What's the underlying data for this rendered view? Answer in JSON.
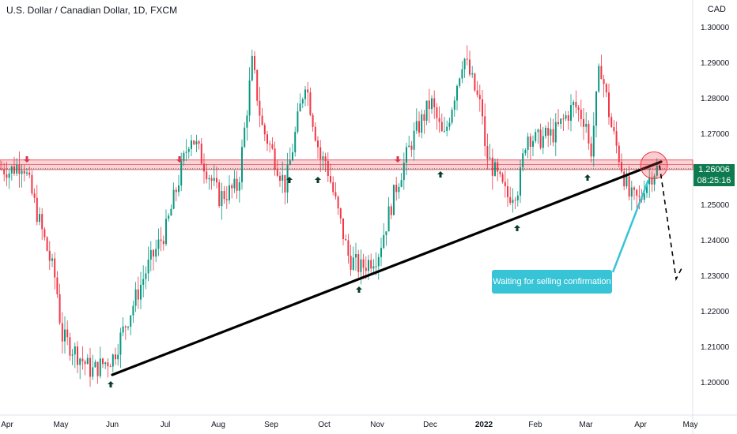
{
  "header": {
    "title": "U.S. Dollar / Canadian Dollar, 1D, FXCM",
    "currency": "CAD"
  },
  "price_tag": {
    "price": "1.26006",
    "countdown": "08:25:16"
  },
  "annotation": {
    "text": "Waiting for selling confirmation"
  },
  "colors": {
    "up": "#26a69a",
    "bull_candle": "#089981",
    "bear_candle": "#f23645",
    "trendline": "#000000",
    "zone_fill": "#f7c9cc",
    "zone_border": "#e0334a",
    "callout": "#37c4d6",
    "price_tag": "#0d7a4f"
  },
  "chart_data": {
    "type": "candlestick",
    "title": "U.S. Dollar / Canadian Dollar, 1D, FXCM",
    "y_unit": "CAD",
    "ylim": [
      1.195,
      1.302
    ],
    "y_ticks": [
      "1.30000",
      "1.29000",
      "1.28000",
      "1.27000",
      "1.26000",
      "1.25000",
      "1.24000",
      "1.23000",
      "1.22000",
      "1.21000",
      "1.20000"
    ],
    "x_ticks": [
      "Apr",
      "May",
      "Jun",
      "Jul",
      "Aug",
      "Sep",
      "Oct",
      "Nov",
      "Dec",
      "2022",
      "Feb",
      "Mar",
      "Apr",
      "May"
    ],
    "grid": false,
    "approx_close_path": [
      {
        "date": "Apr",
        "close": 1.259
      },
      {
        "date": "May",
        "close": 1.213
      },
      {
        "date": "Jun",
        "close": 1.207
      },
      {
        "date": "Jul",
        "close": 1.243
      },
      {
        "date": "Aug",
        "close": 1.252
      },
      {
        "date": "Sep",
        "close": 1.265
      },
      {
        "date": "Oct",
        "close": 1.263
      },
      {
        "date": "Nov",
        "close": 1.236
      },
      {
        "date": "Dec",
        "close": 1.279
      },
      {
        "date": "2022",
        "close": 1.265
      },
      {
        "date": "Feb",
        "close": 1.268
      },
      {
        "date": "Mar",
        "close": 1.273
      },
      {
        "date": "Apr",
        "close": 1.251
      },
      {
        "date": "current",
        "close": 1.26006
      }
    ],
    "resistance_zone": [
      1.2598,
      1.2625
    ],
    "support_trendline": [
      {
        "date": "Jun",
        "price": 1.202
      },
      {
        "date": "Apr",
        "price": 1.262
      }
    ],
    "projection": [
      {
        "date": "Apr",
        "price": 1.261
      },
      {
        "date": "May",
        "price": 1.229
      }
    ]
  }
}
